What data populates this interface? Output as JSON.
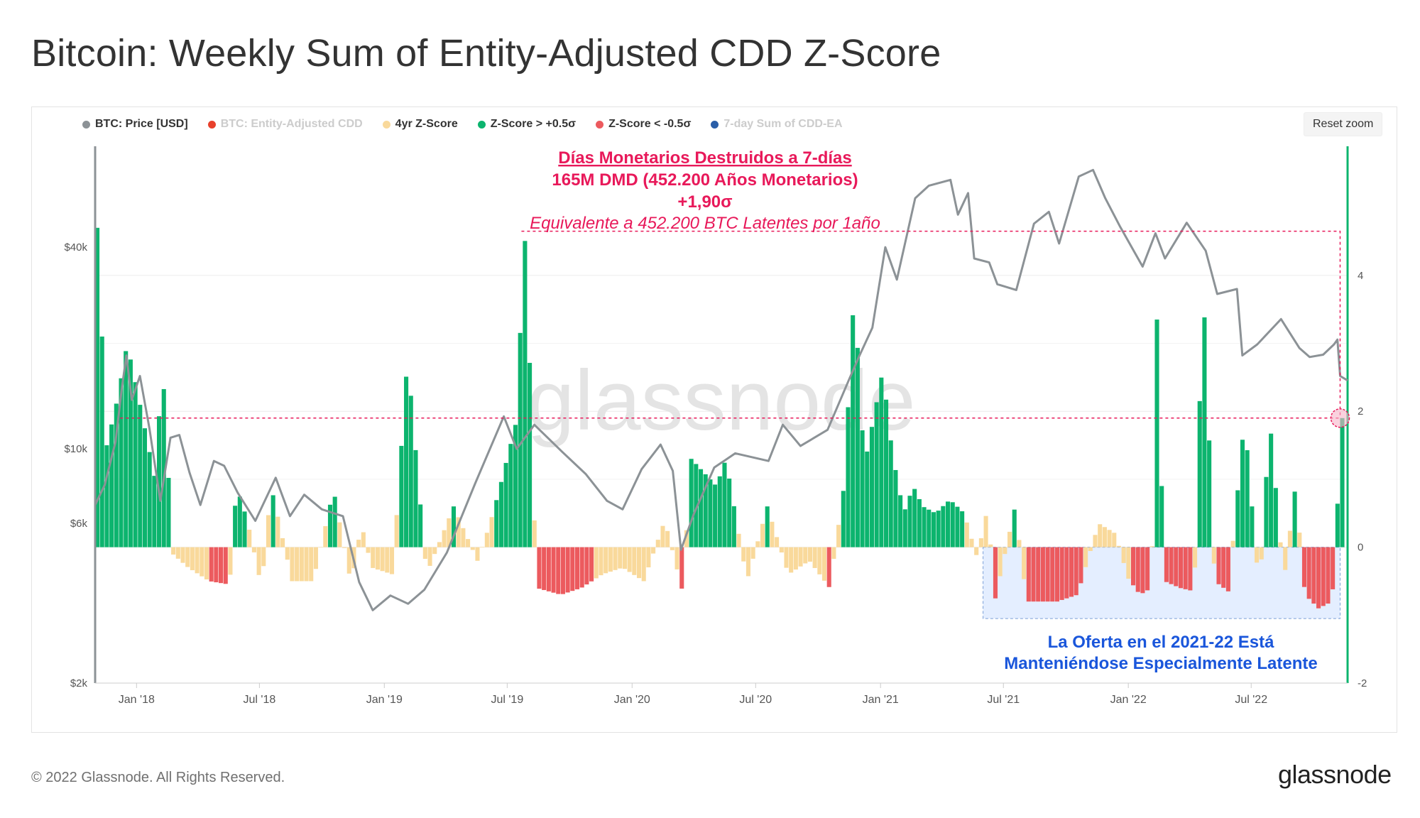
{
  "title": "Bitcoin: Weekly Sum of Entity-Adjusted CDD Z-Score",
  "reset_zoom_label": "Reset zoom",
  "footer": {
    "copyright": "© 2022 Glassnode. All Rights Reserved.",
    "logo": "glassnode"
  },
  "watermark": "glassnode",
  "legend": [
    {
      "label": "BTC: Price [USD]",
      "color": "#8c9296",
      "hidden": false
    },
    {
      "label": "BTC: Entity-Adjusted CDD",
      "color": "#e8412c",
      "hidden": true
    },
    {
      "label": "4yr Z-Score",
      "color": "#f9d99b",
      "hidden": false
    },
    {
      "label": "Z-Score > +0.5σ",
      "color": "#0cb46e",
      "hidden": false
    },
    {
      "label": "Z-Score < -0.5σ",
      "color": "#ec5a5e",
      "hidden": false
    },
    {
      "label": "7-day Sum of CDD-EA",
      "color": "#2a5ea8",
      "hidden": true
    }
  ],
  "annotations": {
    "top": {
      "line1": "Días Monetarios Destruidos a 7-días",
      "line2": "165M DMD (452.200 Años Monetarios)",
      "line3": "+1,90σ",
      "line4": "Equivalente a 452.200 BTC Latentes por 1año",
      "color": "#e8195a"
    },
    "bottom": {
      "line1": "La Oferta en el 2021-22 Está",
      "line2": "Manteniéndose Especialmente Latente",
      "color": "#1a56db"
    }
  },
  "chart_data": {
    "type": "line+bar",
    "x_ticks": [
      "Jan '18",
      "Jul '18",
      "Jan '19",
      "Jul '19",
      "Jan '20",
      "Jul '20",
      "Jan '21",
      "Jul '21",
      "Jan '22",
      "Jul '22"
    ],
    "x_range": [
      "2017-11-01",
      "2022-11-20"
    ],
    "y_left": {
      "label": "",
      "scale": "log",
      "ticks": [
        "$2k",
        "$6k",
        "$10k",
        "$40k"
      ],
      "tick_values": [
        2000,
        6000,
        10000,
        40000
      ],
      "range": [
        2000,
        80000
      ]
    },
    "y_right": {
      "label": "",
      "ticks": [
        "-2",
        "0",
        "2",
        "4"
      ],
      "tick_values": [
        -2,
        0,
        2,
        4
      ],
      "range": [
        -2,
        5.9
      ]
    },
    "price_series": {
      "name": "BTC: Price [USD]",
      "color": "#8c9296",
      "points": [
        [
          "2017-11-01",
          6800
        ],
        [
          "2017-11-15",
          7800
        ],
        [
          "2017-12-01",
          10500
        ],
        [
          "2017-12-10",
          15000
        ],
        [
          "2017-12-17",
          19000
        ],
        [
          "2017-12-25",
          14000
        ],
        [
          "2018-01-06",
          16500
        ],
        [
          "2018-01-20",
          11500
        ],
        [
          "2018-02-05",
          7000
        ],
        [
          "2018-02-20",
          10800
        ],
        [
          "2018-03-05",
          11000
        ],
        [
          "2018-03-20",
          8500
        ],
        [
          "2018-04-05",
          6800
        ],
        [
          "2018-04-25",
          9200
        ],
        [
          "2018-05-10",
          8900
        ],
        [
          "2018-05-30",
          7400
        ],
        [
          "2018-06-25",
          6100
        ],
        [
          "2018-07-25",
          8200
        ],
        [
          "2018-08-15",
          6300
        ],
        [
          "2018-09-05",
          7300
        ],
        [
          "2018-10-01",
          6600
        ],
        [
          "2018-11-01",
          6300
        ],
        [
          "2018-11-25",
          4000
        ],
        [
          "2018-12-15",
          3300
        ],
        [
          "2019-01-10",
          3650
        ],
        [
          "2019-02-05",
          3450
        ],
        [
          "2019-03-01",
          3800
        ],
        [
          "2019-04-03",
          4900
        ],
        [
          "2019-05-15",
          7900
        ],
        [
          "2019-06-26",
          12500
        ],
        [
          "2019-07-15",
          10000
        ],
        [
          "2019-08-10",
          11800
        ],
        [
          "2019-09-20",
          9800
        ],
        [
          "2019-10-25",
          8400
        ],
        [
          "2019-11-25",
          7000
        ],
        [
          "2019-12-18",
          6600
        ],
        [
          "2020-01-15",
          8700
        ],
        [
          "2020-02-12",
          10300
        ],
        [
          "2020-03-01",
          8600
        ],
        [
          "2020-03-13",
          5000
        ],
        [
          "2020-04-01",
          6400
        ],
        [
          "2020-05-01",
          8800
        ],
        [
          "2020-06-01",
          9700
        ],
        [
          "2020-07-20",
          9200
        ],
        [
          "2020-08-10",
          11800
        ],
        [
          "2020-09-05",
          10200
        ],
        [
          "2020-10-15",
          11400
        ],
        [
          "2020-11-15",
          16000
        ],
        [
          "2020-12-01",
          19000
        ],
        [
          "2020-12-20",
          23000
        ],
        [
          "2021-01-08",
          40000
        ],
        [
          "2021-01-25",
          32000
        ],
        [
          "2021-02-21",
          56000
        ],
        [
          "2021-03-13",
          61000
        ],
        [
          "2021-04-14",
          63500
        ],
        [
          "2021-04-25",
          50000
        ],
        [
          "2021-05-10",
          58000
        ],
        [
          "2021-05-19",
          37000
        ],
        [
          "2021-06-10",
          36000
        ],
        [
          "2021-06-22",
          31000
        ],
        [
          "2021-07-20",
          29800
        ],
        [
          "2021-08-15",
          47000
        ],
        [
          "2021-09-06",
          51000
        ],
        [
          "2021-09-21",
          41000
        ],
        [
          "2021-10-20",
          65000
        ],
        [
          "2021-11-10",
          68000
        ],
        [
          "2021-11-28",
          56000
        ],
        [
          "2021-12-20",
          46000
        ],
        [
          "2022-01-22",
          35000
        ],
        [
          "2022-02-10",
          44000
        ],
        [
          "2022-02-24",
          37000
        ],
        [
          "2022-03-28",
          47300
        ],
        [
          "2022-04-25",
          39000
        ],
        [
          "2022-05-12",
          29000
        ],
        [
          "2022-06-10",
          30000
        ],
        [
          "2022-06-18",
          19000
        ],
        [
          "2022-07-10",
          20500
        ],
        [
          "2022-08-14",
          24400
        ],
        [
          "2022-09-10",
          20000
        ],
        [
          "2022-09-25",
          18800
        ],
        [
          "2022-10-15",
          19100
        ],
        [
          "2022-10-31",
          20500
        ],
        [
          "2022-11-05",
          21200
        ],
        [
          "2022-11-09",
          16500
        ],
        [
          "2022-11-20",
          16000
        ]
      ]
    },
    "zscore_series": {
      "name": "4yr Z-Score",
      "colors": {
        "neutral": "#f9d99b",
        "above": "#0cb46e",
        "below": "#ec5a5e"
      },
      "thresholds": {
        "above": 0.5,
        "below": -0.5
      },
      "points": [
        [
          "2017-11-01",
          4.7
        ],
        [
          "2017-11-15",
          1.5
        ],
        [
          "2017-12-01",
          2.2
        ],
        [
          "2017-12-15",
          3.0
        ],
        [
          "2018-01-05",
          2.0
        ],
        [
          "2018-01-25",
          1.0
        ],
        [
          "2018-02-05",
          2.7
        ],
        [
          "2018-02-20",
          -0.1
        ],
        [
          "2018-03-15",
          -0.3
        ],
        [
          "2018-04-15",
          -0.5
        ],
        [
          "2018-05-15",
          -0.55
        ],
        [
          "2018-05-25",
          0.9
        ],
        [
          "2018-06-10",
          0.4
        ],
        [
          "2018-07-01",
          -0.6
        ],
        [
          "2018-07-15",
          0.9
        ],
        [
          "2018-08-15",
          -0.5
        ],
        [
          "2018-09-15",
          -0.5
        ],
        [
          "2018-10-15",
          0.85
        ],
        [
          "2018-11-10",
          -0.55
        ],
        [
          "2018-11-25",
          0.35
        ],
        [
          "2018-12-10",
          -0.3
        ],
        [
          "2019-01-10",
          -0.4
        ],
        [
          "2019-02-01",
          2.8
        ],
        [
          "2019-03-01",
          -0.4
        ],
        [
          "2019-04-10",
          0.6
        ],
        [
          "2019-05-15",
          -0.2
        ],
        [
          "2019-06-01",
          0.3
        ],
        [
          "2019-06-15",
          0.8
        ],
        [
          "2019-07-10",
          1.8
        ],
        [
          "2019-07-25",
          4.7
        ],
        [
          "2019-08-10",
          -0.6
        ],
        [
          "2019-09-15",
          -0.7
        ],
        [
          "2019-10-15",
          -0.6
        ],
        [
          "2019-11-15",
          -0.4
        ],
        [
          "2019-12-15",
          -0.3
        ],
        [
          "2020-01-15",
          -0.5
        ],
        [
          "2020-02-15",
          0.4
        ],
        [
          "2020-03-12",
          -0.65
        ],
        [
          "2020-03-25",
          1.3
        ],
        [
          "2020-05-01",
          0.9
        ],
        [
          "2020-05-15",
          1.3
        ],
        [
          "2020-06-15",
          -0.5
        ],
        [
          "2020-07-15",
          0.6
        ],
        [
          "2020-08-15",
          -0.4
        ],
        [
          "2020-09-15",
          -0.2
        ],
        [
          "2020-10-15",
          -0.6
        ],
        [
          "2020-11-05",
          0.9
        ],
        [
          "2020-11-20",
          3.8
        ],
        [
          "2020-12-05",
          1.2
        ],
        [
          "2021-01-01",
          2.6
        ],
        [
          "2021-01-15",
          1.4
        ],
        [
          "2021-02-01",
          0.5
        ],
        [
          "2021-02-15",
          0.9
        ],
        [
          "2021-03-01",
          0.6
        ],
        [
          "2021-03-20",
          0.5
        ],
        [
          "2021-04-10",
          0.7
        ],
        [
          "2021-05-01",
          0.5
        ],
        [
          "2021-05-20",
          -0.15
        ],
        [
          "2021-06-05",
          0.6
        ],
        [
          "2021-06-15",
          -0.8
        ],
        [
          "2021-07-15",
          0.6
        ],
        [
          "2021-08-01",
          -0.8
        ],
        [
          "2021-09-15",
          -0.8
        ],
        [
          "2021-10-15",
          -0.7
        ],
        [
          "2021-11-15",
          0.35
        ],
        [
          "2021-12-10",
          0.2
        ],
        [
          "2021-12-28",
          -0.45
        ],
        [
          "2022-01-15",
          -0.7
        ],
        [
          "2022-02-01",
          -0.6
        ],
        [
          "2022-02-08",
          3.7
        ],
        [
          "2022-02-20",
          -0.5
        ],
        [
          "2022-03-15",
          -0.6
        ],
        [
          "2022-04-05",
          -0.65
        ],
        [
          "2022-04-18",
          3.9
        ],
        [
          "2022-05-05",
          -0.5
        ],
        [
          "2022-05-25",
          -0.65
        ],
        [
          "2022-06-18",
          1.9
        ],
        [
          "2022-07-10",
          -0.7
        ],
        [
          "2022-07-25",
          1.9
        ],
        [
          "2022-08-15",
          -0.5
        ],
        [
          "2022-09-01",
          0.9
        ],
        [
          "2022-09-15",
          -0.7
        ],
        [
          "2022-10-05",
          -0.9
        ],
        [
          "2022-10-25",
          -0.8
        ],
        [
          "2022-11-09",
          1.9
        ]
      ]
    },
    "reference_lines": [
      {
        "type": "horizontal-dashed",
        "y": 1.9,
        "axis": "right",
        "from": "2017-12-08",
        "to": "2022-11-10"
      },
      {
        "type": "box-dashed",
        "x_from": "2019-07-22",
        "x_to": "2022-11-09",
        "y_top": 4.65,
        "y_bottom": 1.9
      }
    ],
    "highlight_box": {
      "x_from": "2021-06-01",
      "x_to": "2022-11-09",
      "y_top": 0.0,
      "y_bottom": -1.05,
      "fill": "#dbe8ff",
      "stroke": "#7a9fd8"
    },
    "highlight_point": {
      "x": "2022-11-09",
      "y": 1.9
    },
    "grid": true,
    "legend_position": "top-left"
  }
}
